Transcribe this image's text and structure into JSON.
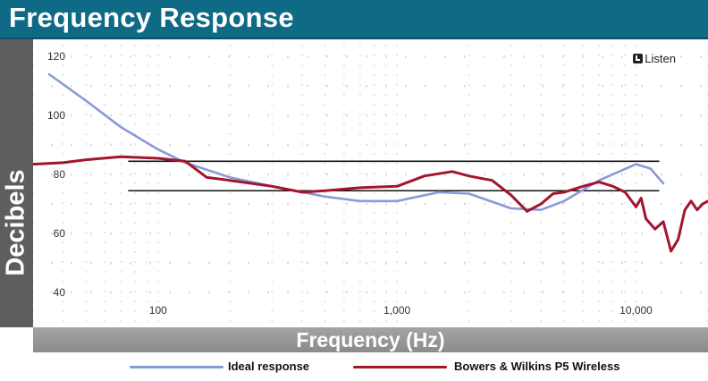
{
  "chart_data": {
    "type": "line",
    "title": "Frequency Response",
    "xlabel": "Frequency (Hz)",
    "ylabel": "Decibels",
    "x_scale": "log",
    "xlim": [
      30,
      20000
    ],
    "ylim": [
      30,
      124
    ],
    "y_ticks": [
      40,
      60,
      80,
      100,
      120
    ],
    "x_ticks": [
      {
        "value": 100,
        "label": "100"
      },
      {
        "value": 1000,
        "label": "1,000"
      },
      {
        "value": 10000,
        "label": "10,000"
      }
    ],
    "grid": "dotted",
    "reference_lines": [
      {
        "y": 84.5
      },
      {
        "y": 74.5
      }
    ],
    "series": [
      {
        "name": "Ideal response",
        "color": "#8a9ad6",
        "x": [
          35,
          50,
          70,
          100,
          130,
          200,
          300,
          500,
          700,
          1000,
          1500,
          2000,
          3000,
          4000,
          5000,
          7000,
          10000,
          11500,
          13000
        ],
        "y": [
          114,
          105,
          96,
          88.5,
          84,
          79,
          76,
          72.5,
          71,
          71,
          74,
          73.5,
          68.5,
          68,
          71,
          78,
          83.5,
          82,
          77
        ]
      },
      {
        "name": "Bowers & Wilkins P5 Wireless",
        "color": "#a3152e",
        "x": [
          30,
          40,
          50,
          70,
          100,
          130,
          160,
          200,
          300,
          400,
          500,
          700,
          1000,
          1300,
          1700,
          2000,
          2500,
          3000,
          3500,
          4000,
          4500,
          5000,
          6000,
          7000,
          8000,
          9000,
          10000,
          10500,
          11000,
          12000,
          13000,
          14000,
          15000,
          16000,
          17000,
          18000,
          19000,
          20000
        ],
        "y": [
          83.5,
          84,
          85,
          86,
          85.5,
          84.5,
          79,
          78,
          76,
          74,
          74.5,
          75.5,
          76,
          79.5,
          81,
          79.5,
          78,
          73,
          67.5,
          70,
          73.5,
          74,
          76,
          77.5,
          76,
          74,
          69,
          72,
          65,
          61.5,
          64,
          54,
          58,
          68,
          71,
          68,
          70,
          71
        ]
      }
    ]
  },
  "brand_label": "Listen"
}
